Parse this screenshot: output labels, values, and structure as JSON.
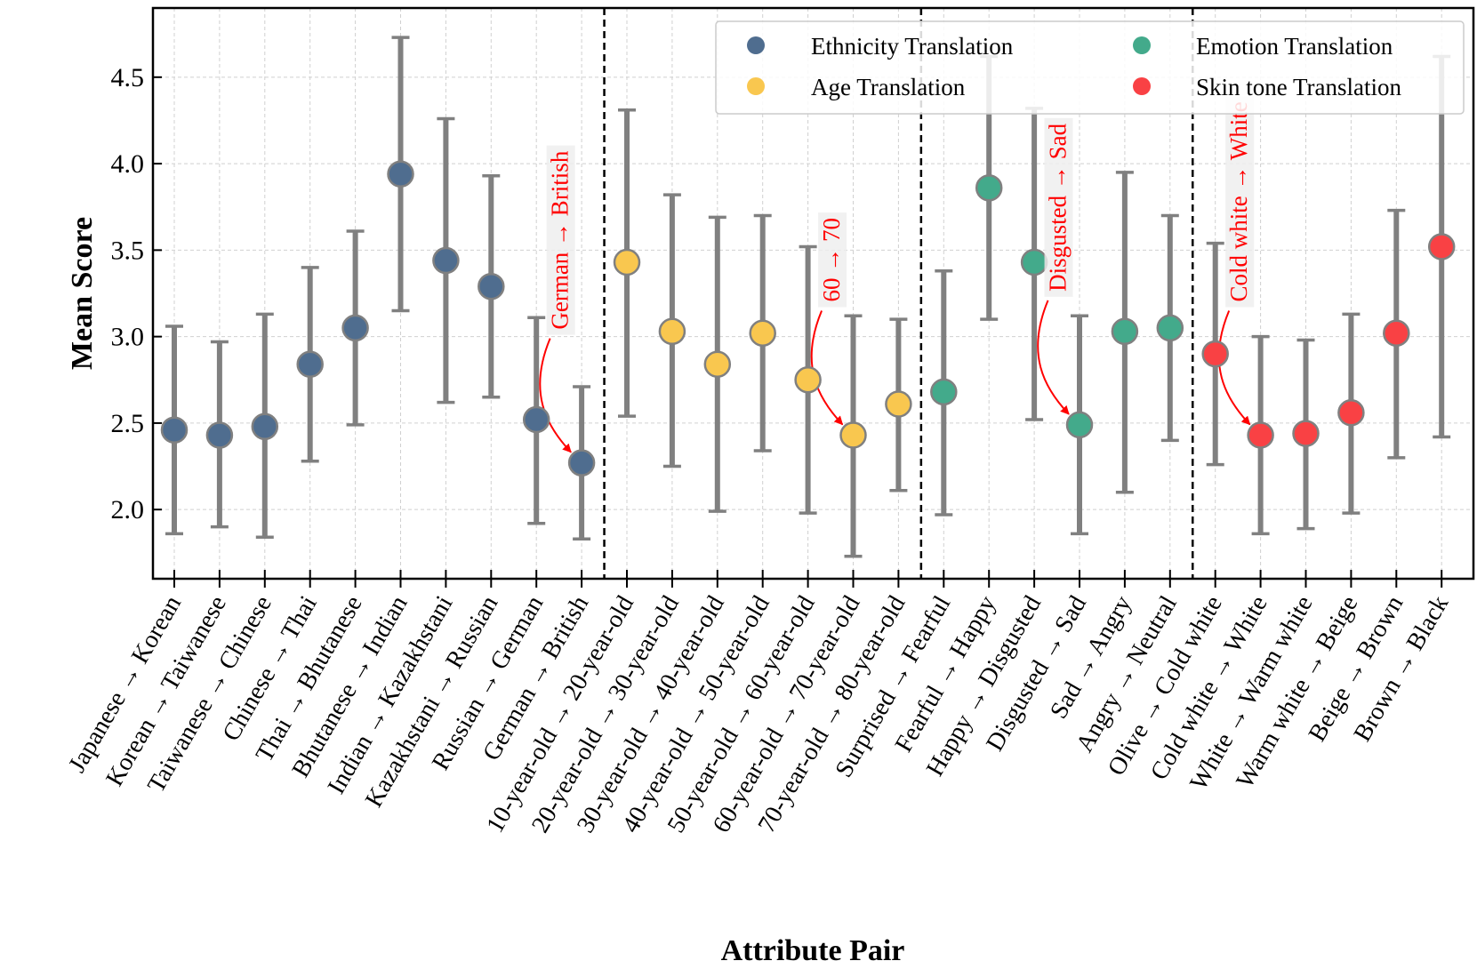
{
  "chart_data": {
    "type": "scatter",
    "title": "",
    "xlabel": "Attribute Pair",
    "ylabel": "Mean Score",
    "ylim": [
      1.6,
      4.9
    ],
    "yticks": [
      2.0,
      2.5,
      3.0,
      3.5,
      4.0,
      4.5
    ],
    "ytick_labels": [
      "2.0",
      "2.5",
      "3.0",
      "3.5",
      "4.0",
      "4.5"
    ],
    "grid": true,
    "legend_position": "top-right",
    "series": [
      {
        "name": "Ethnicity Translation",
        "color": "#4f6d8f",
        "categories": [
          "Japanese → Korean",
          "Korean → Taiwanese",
          "Taiwanese → Chinese",
          "Chinese → Thai",
          "Thai → Bhutanese",
          "Bhutanese → Indian",
          "Indian → Kazakhstani",
          "Kazakhstani → Russian",
          "Russian → German",
          "German → British"
        ],
        "values": [
          2.46,
          2.43,
          2.48,
          2.84,
          3.05,
          3.94,
          3.44,
          3.29,
          2.52,
          2.27
        ],
        "lower": [
          1.86,
          1.9,
          1.84,
          2.28,
          2.49,
          3.15,
          2.62,
          2.65,
          1.92,
          1.83
        ],
        "upper": [
          3.06,
          2.97,
          3.13,
          3.4,
          3.61,
          4.73,
          4.26,
          3.93,
          3.11,
          2.71
        ]
      },
      {
        "name": "Age Translation",
        "color": "#f9c74f",
        "categories": [
          "10-year-old → 20-year-old",
          "20-year-old → 30-year-old",
          "30-year-old → 40-year-old",
          "40-year-old → 50-year-old",
          "50-year-old → 60-year-old",
          "60-year-old → 70-year-old",
          "70-year-old → 80-year-old"
        ],
        "values": [
          3.43,
          3.03,
          2.84,
          3.02,
          2.75,
          2.43,
          2.61
        ],
        "lower": [
          2.54,
          2.25,
          1.99,
          2.34,
          1.98,
          1.73,
          2.11
        ],
        "upper": [
          4.31,
          3.82,
          3.69,
          3.7,
          3.52,
          3.12,
          3.1
        ]
      },
      {
        "name": "Emotion Translation",
        "color": "#43aa8b",
        "categories": [
          "Surprised → Fearful",
          "Fearful → Happy",
          "Happy → Disgusted",
          "Disgusted → Sad",
          "Sad → Angry",
          "Angry → Neutral"
        ],
        "values": [
          2.68,
          3.86,
          3.43,
          2.49,
          3.03,
          3.05
        ],
        "lower": [
          1.97,
          3.1,
          2.52,
          1.86,
          2.1,
          2.4
        ],
        "upper": [
          3.38,
          4.62,
          4.32,
          3.12,
          3.95,
          3.7
        ]
      },
      {
        "name": "Skin tone Translation",
        "color": "#f94144",
        "categories": [
          "Olive → Cold white",
          "Cold white → White",
          "White → Warm white",
          "Warm white → Beige",
          "Beige → Brown",
          "Brown → Black"
        ],
        "values": [
          2.9,
          2.43,
          2.44,
          2.56,
          3.02,
          3.52
        ],
        "lower": [
          2.26,
          1.86,
          1.89,
          1.98,
          2.3,
          2.42
        ],
        "upper": [
          3.54,
          3.0,
          2.98,
          3.13,
          3.73,
          4.62
        ]
      }
    ],
    "annotations": [
      {
        "text": "German → British",
        "from_category": "Russian → German",
        "to_category": "German → British"
      },
      {
        "text": "60 → 70",
        "from_category": "50-year-old → 60-year-old",
        "to_category": "60-year-old → 70-year-old"
      },
      {
        "text": "Disgusted → Sad",
        "from_category": "Happy → Disgusted",
        "to_category": "Disgusted → Sad"
      },
      {
        "text": "Cold white → White",
        "from_category": "Olive → Cold white",
        "to_category": "Cold white → White"
      }
    ],
    "group_separators_after": [
      "German → British",
      "70-year-old → 80-year-old",
      "Angry → Neutral"
    ]
  },
  "colors": {
    "errorbar": "#808080",
    "marker_edge": "#808080",
    "annotation": "#ff0000",
    "grid": "#d0d0d0"
  }
}
